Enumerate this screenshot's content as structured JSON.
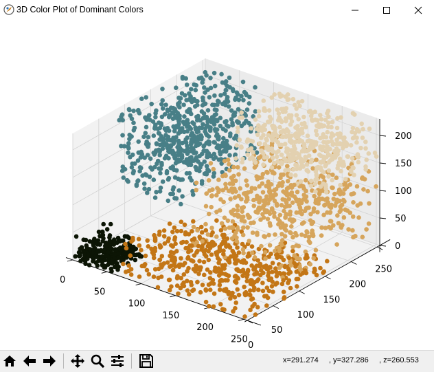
{
  "window": {
    "title": "3D Color Plot of Dominant Colors",
    "controls": [
      "minimize",
      "maximize",
      "close"
    ]
  },
  "toolbar": {
    "buttons": [
      {
        "name": "home-icon"
      },
      {
        "name": "back-arrow-icon"
      },
      {
        "name": "forward-arrow-icon"
      },
      {
        "name": "pan-icon"
      },
      {
        "name": "zoom-icon"
      },
      {
        "name": "configure-subplots-icon"
      },
      {
        "name": "save-icon"
      }
    ],
    "coordinates": "x=291.274     , y=327.286     , z=260.553"
  },
  "chart_data": {
    "type": "scatter3d",
    "title": "",
    "axes": {
      "x": {
        "range": [
          0,
          255
        ],
        "ticks": [
          "0",
          "50",
          "100",
          "150",
          "200",
          "250"
        ]
      },
      "y": {
        "range": [
          0,
          255
        ],
        "ticks": [
          "0",
          "50",
          "100",
          "150",
          "200",
          "250"
        ]
      },
      "z": {
        "range": [
          0,
          230
        ],
        "ticks": [
          "0",
          "50",
          "100",
          "150",
          "200"
        ]
      }
    },
    "grid": true,
    "series": [
      {
        "color": "#0c1505",
        "x_range": [
          0,
          60
        ],
        "y_range": [
          0,
          60
        ],
        "z_range": [
          0,
          55
        ],
        "points": 220
      },
      {
        "color": "#c37616",
        "x_range": [
          60,
          255
        ],
        "y_range": [
          0,
          160
        ],
        "z_range": [
          0,
          80
        ],
        "points": 480
      },
      {
        "color": "#487f87",
        "x_range": [
          0,
          90
        ],
        "y_range": [
          80,
          255
        ],
        "z_range": [
          90,
          230
        ],
        "points": 600
      },
      {
        "color": "#d6a55c",
        "x_range": [
          100,
          255
        ],
        "y_range": [
          90,
          255
        ],
        "z_range": [
          20,
          150
        ],
        "points": 520
      },
      {
        "color": "#e3d1b0",
        "x_range": [
          110,
          255
        ],
        "y_range": [
          150,
          255
        ],
        "z_range": [
          140,
          230
        ],
        "points": 420
      }
    ]
  }
}
